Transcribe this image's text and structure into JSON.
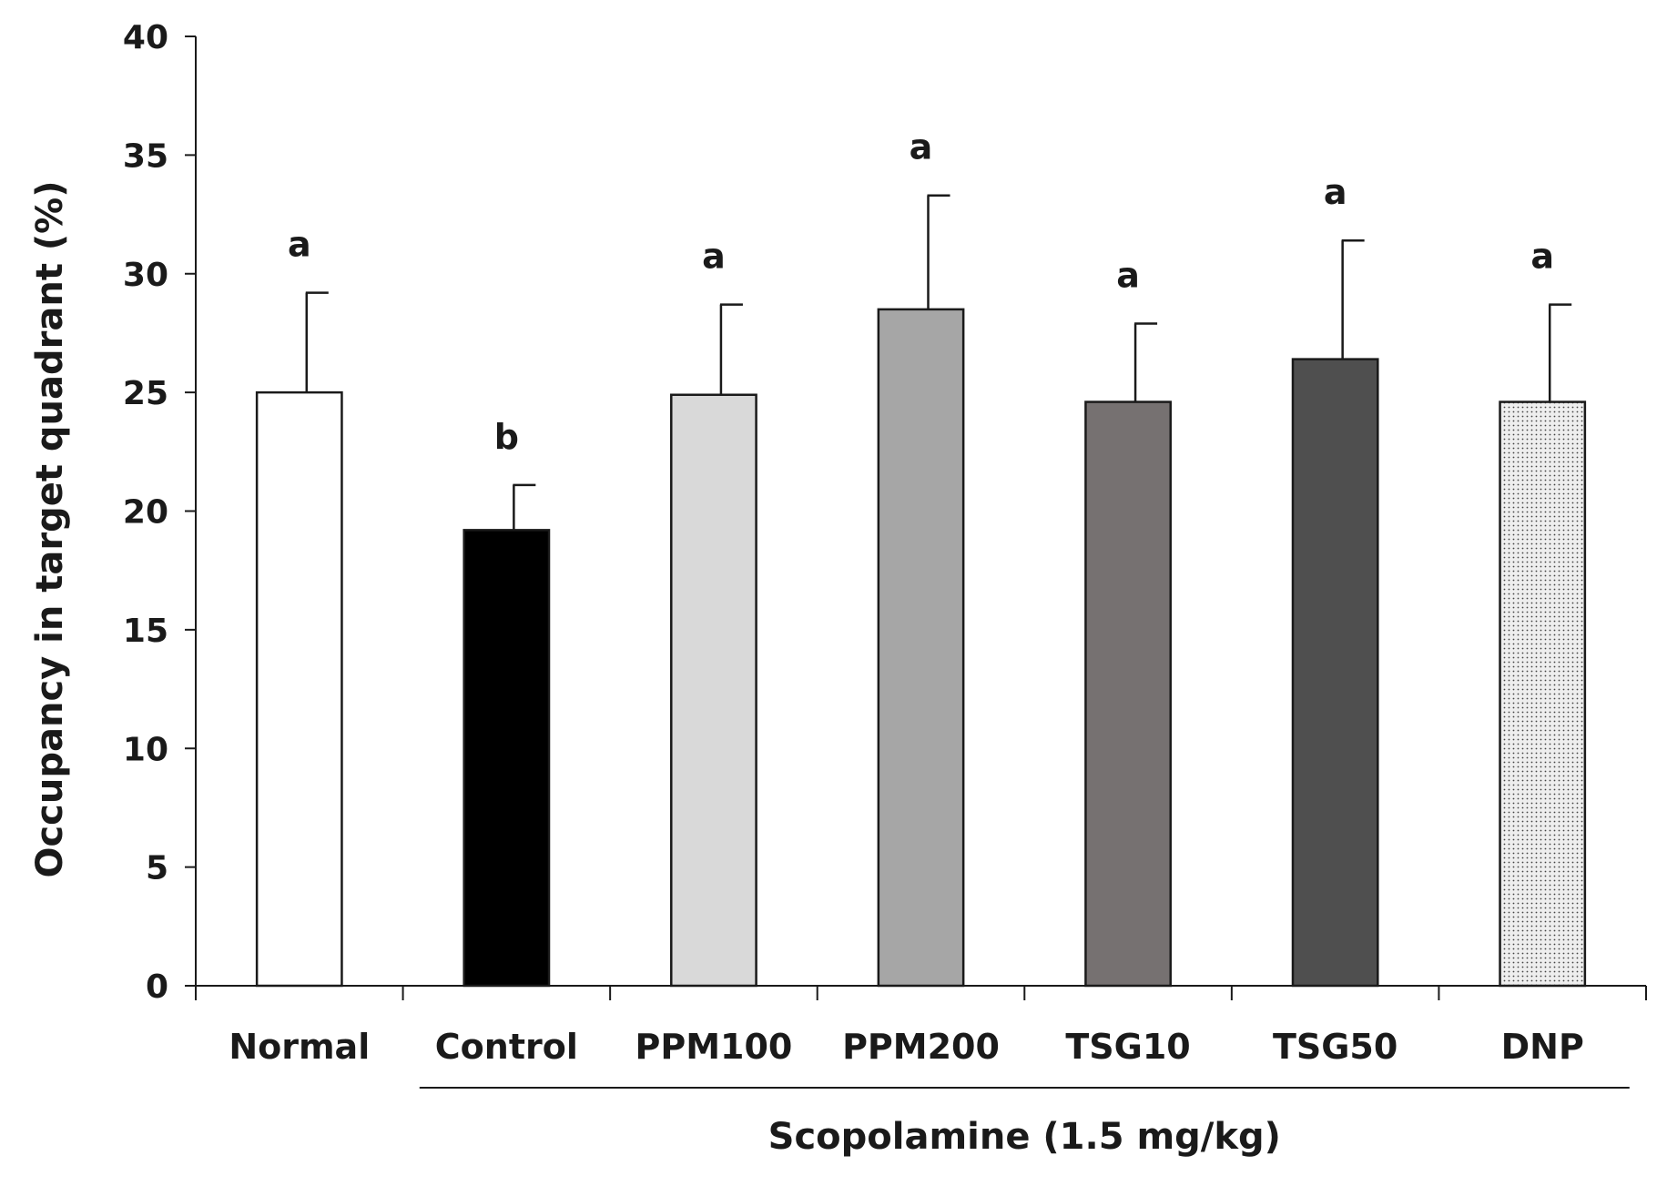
{
  "chart_data": {
    "type": "bar",
    "title": "",
    "xlabel": "",
    "ylabel": "Occupancy in target quadrant (%)",
    "ylim": [
      0,
      40
    ],
    "yticks": [
      0,
      5,
      10,
      15,
      20,
      25,
      30,
      35,
      40
    ],
    "grid": false,
    "categories": [
      "Normal",
      "Control",
      "PPM100",
      "PPM200",
      "TSG10",
      "TSG50",
      "DNP"
    ],
    "values": [
      25.0,
      19.2,
      24.9,
      28.5,
      24.6,
      26.4,
      24.6
    ],
    "errors": [
      4.2,
      1.9,
      3.8,
      4.8,
      3.3,
      5.0,
      4.1
    ],
    "significance": [
      "a",
      "b",
      "a",
      "a",
      "a",
      "a",
      "a"
    ],
    "fills": [
      "#ffffff",
      "#000000",
      "#d9d9d9",
      "#a6a6a6",
      "#767171",
      "#4f4f4f",
      "dotted"
    ],
    "group": {
      "label": "Scopolamine (1.5 mg/kg)",
      "from_index": 1,
      "to_index": 6
    }
  }
}
